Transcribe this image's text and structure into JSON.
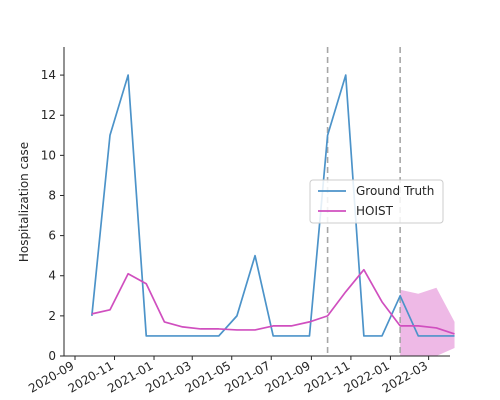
{
  "chart_data": {
    "type": "line",
    "title": "",
    "xlabel": "",
    "ylabel": "Hospitalization case",
    "ylim": [
      0,
      15.4
    ],
    "xlim": [
      "2020-08-15",
      "2022-04-03"
    ],
    "x_ticks": [
      "2020-09",
      "2020-11",
      "2021-01",
      "2021-03",
      "2021-05",
      "2021-07",
      "2021-09",
      "2021-11",
      "2022-01",
      "2022-03"
    ],
    "y_ticks": [
      0,
      2,
      4,
      6,
      8,
      10,
      12,
      14
    ],
    "grid": false,
    "legend_position": "center-right",
    "x": [
      "2020-09-27",
      "2020-10-25",
      "2020-11-22",
      "2020-12-20",
      "2021-01-17",
      "2021-02-14",
      "2021-03-14",
      "2021-04-11",
      "2021-05-09",
      "2021-06-06",
      "2021-07-04",
      "2021-08-01",
      "2021-08-29",
      "2021-09-26",
      "2021-10-24",
      "2021-11-21",
      "2021-12-19",
      "2022-01-16",
      "2022-02-13",
      "2022-03-13",
      "2022-04-10"
    ],
    "series": [
      {
        "name": "Ground Truth",
        "color": "#4c93c9",
        "values": [
          2,
          11,
          14,
          1,
          1,
          1,
          1,
          1,
          2,
          5,
          1,
          1,
          1,
          11,
          14,
          1,
          1,
          3,
          1,
          1,
          1
        ]
      },
      {
        "name": "HOIST",
        "color": "#d04fbf",
        "values": [
          2.1,
          2.3,
          4.1,
          3.6,
          1.7,
          1.45,
          1.35,
          1.35,
          1.3,
          1.3,
          1.5,
          1.5,
          1.7,
          2.0,
          3.2,
          4.3,
          2.7,
          1.5,
          1.5,
          1.4,
          1.1
        ]
      }
    ],
    "uncertainty_band": {
      "color": "#e594d9",
      "x": [
        "2022-01-16",
        "2022-02-13",
        "2022-03-13",
        "2022-04-10"
      ],
      "lower": [
        0,
        0,
        0,
        0.4
      ],
      "upper": [
        3.3,
        3.1,
        3.4,
        1.7
      ]
    },
    "vertical_lines": [
      "2021-09-26",
      "2022-01-16"
    ]
  }
}
